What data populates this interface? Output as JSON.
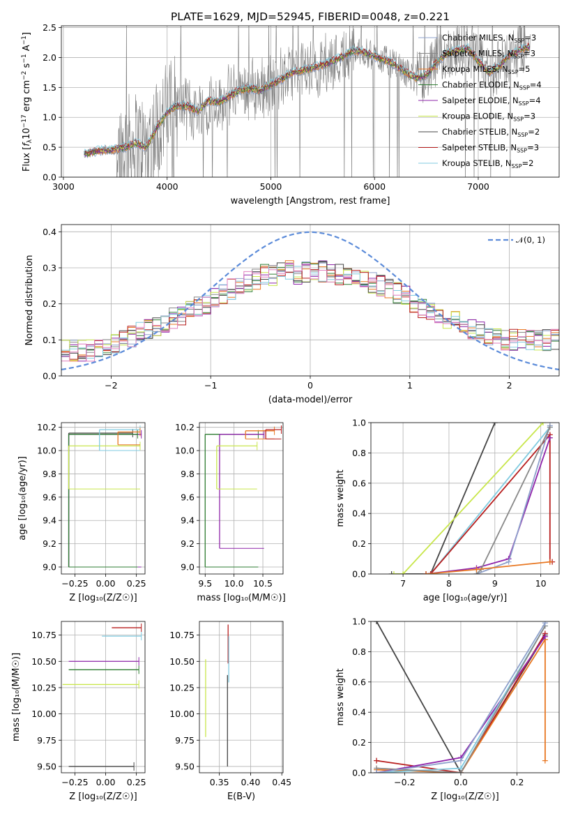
{
  "figure": {
    "title": "PLATE=1629, MJD=52945, FIBERID=0048, z=0.221"
  },
  "colors": {
    "Chabrier MILES": "#8da0cb",
    "Salpeter MILES": "#888888",
    "Kroupa MILES": "#e87722",
    "Chabrier ELODIE": "#2e7d32",
    "Salpeter ELODIE": "#8e24aa",
    "Kroupa ELODIE": "#c8e64a",
    "Chabrier STELIB": "#444444",
    "Salpeter STELIB": "#b71c1c",
    "Kroupa STELIB": "#80cbe0",
    "gauss": "#5b8bd9",
    "pink": "#e07fbf"
  },
  "chart_data": [
    {
      "type": "line",
      "panel": "spectrum",
      "xlabel": "wavelength [Angstrom, rest frame]",
      "ylabel": "Flux [f_λ 10^-17 erg cm^-2 s^-1 A^-1]",
      "ylabel_parts": {
        "a": "Flux [",
        "b": "f",
        "c": "λ",
        "d": "10",
        "e": "−17",
        "f": " erg cm",
        "g": "−2",
        "h": " s",
        "i": "−1",
        "j": " A",
        "k": "−1",
        "l": "]"
      },
      "xlim": [
        2980,
        7780
      ],
      "ylim": [
        0,
        2.53
      ],
      "xticks": [
        3000,
        4000,
        5000,
        6000,
        7000
      ],
      "yticks": [
        0.0,
        0.5,
        1.0,
        1.5,
        2.0,
        2.5
      ],
      "grid": true,
      "legend_position": "right",
      "legend": [
        {
          "label": "Chabrier MILES, N",
          "sub": "SSP",
          "tail": "=3"
        },
        {
          "label": "Salpeter MILES, N",
          "sub": "SSP",
          "tail": "=3"
        },
        {
          "label": "Kroupa MILES, N",
          "sub": "SSP",
          "tail": "=5"
        },
        {
          "label": "Chabrier ELODIE, N",
          "sub": "SSP",
          "tail": "=4"
        },
        {
          "label": "Salpeter ELODIE, N",
          "sub": "SSP",
          "tail": "=4"
        },
        {
          "label": "Kroupa ELODIE, N",
          "sub": "SSP",
          "tail": "=3"
        },
        {
          "label": "Chabrier STELIB, N",
          "sub": "SSP",
          "tail": "=2"
        },
        {
          "label": "Salpeter STELIB, N",
          "sub": "SSP",
          "tail": "=3"
        },
        {
          "label": "Kroupa STELIB, N",
          "sub": "SSP",
          "tail": "=2"
        }
      ],
      "model_continuum": {
        "x": [
          3200,
          3300,
          3400,
          3500,
          3600,
          3700,
          3800,
          3900,
          4000,
          4100,
          4200,
          4300,
          4400,
          4500,
          4600,
          4700,
          4800,
          4900,
          5000,
          5100,
          5200,
          5300,
          5400,
          5500,
          5600,
          5700,
          5800,
          5900,
          6000,
          6100,
          6200,
          6300,
          6400,
          6500,
          6600,
          6700,
          6800,
          6900,
          7000,
          7100,
          7200,
          7300,
          7400,
          7500
        ],
        "y": [
          0.38,
          0.43,
          0.45,
          0.46,
          0.5,
          0.57,
          0.5,
          0.82,
          1.08,
          1.2,
          1.18,
          1.1,
          1.28,
          1.25,
          1.35,
          1.46,
          1.48,
          1.45,
          1.55,
          1.63,
          1.75,
          1.78,
          1.83,
          1.87,
          1.94,
          2.02,
          2.12,
          2.08,
          2.02,
          1.96,
          1.87,
          1.75,
          1.66,
          1.7,
          1.92,
          2.08,
          2.12,
          2.15,
          1.94,
          1.75,
          1.85,
          2.03,
          2.12,
          2.18
        ]
      }
    },
    {
      "type": "step",
      "panel": "residual-distribution",
      "xlabel": "(data-model)/error",
      "ylabel": "Normed distribution",
      "xlim": [
        -2.5,
        2.5
      ],
      "ylim": [
        0,
        0.42
      ],
      "xticks": [
        -2,
        -1,
        0,
        1,
        2
      ],
      "yticks": [
        0.0,
        0.1,
        0.2,
        0.3,
        0.4
      ],
      "grid": true,
      "legend_label": "𝒩(0, 1)",
      "legend_position": "top-right",
      "reference": {
        "name": "N(0,1)",
        "mean": 0,
        "sigma": 1
      },
      "mean_hist": [
        0.07,
        0.07,
        0.07,
        0.07,
        0.08,
        0.08,
        0.09,
        0.1,
        0.11,
        0.12,
        0.13,
        0.14,
        0.15,
        0.16,
        0.17,
        0.18,
        0.19,
        0.2,
        0.22,
        0.23,
        0.24,
        0.25,
        0.26,
        0.27,
        0.28,
        0.28,
        0.29,
        0.29,
        0.28,
        0.29,
        0.29,
        0.29,
        0.29,
        0.28,
        0.28,
        0.27,
        0.27,
        0.26,
        0.25,
        0.24,
        0.23,
        0.22,
        0.2,
        0.19,
        0.18,
        0.17,
        0.16,
        0.15,
        0.14,
        0.13,
        0.12,
        0.11,
        0.11,
        0.1,
        0.1,
        0.1,
        0.1,
        0.1,
        0.1,
        0.1
      ]
    },
    {
      "type": "error-bars",
      "panel": "age-vs-Z",
      "xlabel": "Z [log10(Z/Z☉)]",
      "ylabel": "age [log10(age/yr)]",
      "xlim": [
        -0.36,
        0.32
      ],
      "ylim": [
        8.94,
        10.24
      ],
      "xticks": [
        -0.25,
        0.0,
        0.25
      ],
      "xticklabels": [
        "−0.25",
        "0.00",
        "0.25"
      ],
      "yticks": [
        9.0,
        9.2,
        9.4,
        9.6,
        9.8,
        10.0,
        10.2
      ],
      "grid": true,
      "points": [
        {
          "series": "Chabrier STELIB",
          "x": [
            -0.3,
            0.22
          ],
          "y": [
            9.0,
            10.15
          ]
        },
        {
          "series": "Salpeter ELODIE",
          "x": [
            -0.3,
            0.29
          ],
          "y": [
            9.0,
            10.14
          ]
        },
        {
          "series": "Chabrier ELODIE",
          "x": [
            -0.3,
            0.26
          ],
          "y": [
            9.0,
            10.14
          ]
        },
        {
          "series": "Kroupa ELODIE",
          "x": [
            -0.3,
            0.28
          ],
          "y": [
            9.67,
            10.04
          ]
        },
        {
          "series": "Kroupa STELIB",
          "x": [
            -0.05,
            0.28
          ],
          "y": [
            10.0,
            10.18
          ]
        },
        {
          "series": "Kroupa MILES",
          "x": [
            0.1,
            0.28
          ],
          "y": [
            10.05,
            10.16
          ]
        }
      ]
    },
    {
      "type": "error-bars",
      "panel": "age-vs-mass",
      "xlabel": "mass [log10(M/M☉)]",
      "xlim": [
        9.4,
        10.85
      ],
      "ylim": [
        8.94,
        10.24
      ],
      "xticks": [
        9.5,
        10.0,
        10.5
      ],
      "yticks": [
        9.0,
        9.2,
        9.4,
        9.6,
        9.8,
        10.0,
        10.2
      ],
      "grid": true,
      "points": [
        {
          "series": "Chabrier ELODIE",
          "x": [
            9.5,
            10.42
          ],
          "y": [
            9.0,
            10.14
          ]
        },
        {
          "series": "Salpeter ELODIE",
          "x": [
            9.75,
            10.52
          ],
          "y": [
            9.16,
            10.14
          ]
        },
        {
          "series": "Kroupa ELODIE",
          "x": [
            9.7,
            10.4
          ],
          "y": [
            9.67,
            10.04
          ]
        },
        {
          "series": "Kroupa MILES",
          "x": [
            10.2,
            10.7
          ],
          "y": [
            10.1,
            10.17
          ]
        },
        {
          "series": "Salpeter STELIB",
          "x": [
            10.55,
            10.82
          ],
          "y": [
            10.1,
            10.18
          ]
        }
      ]
    },
    {
      "type": "line",
      "panel": "mass-weight-vs-age",
      "xlabel": "age [log10(age/yr)]",
      "ylabel": "mass weight",
      "xlim": [
        6.3,
        10.4
      ],
      "ylim": [
        0,
        1.0
      ],
      "xticks": [
        7,
        8,
        9,
        10
      ],
      "yticks": [
        0.0,
        0.2,
        0.4,
        0.6,
        0.8,
        1.0
      ],
      "grid": true,
      "series": [
        {
          "name": "Chabrier STELIB",
          "x": [
            6.75,
            7.6,
            9.0
          ],
          "y": [
            0.0,
            0.0,
            1.0
          ]
        },
        {
          "name": "Kroupa ELODIE",
          "x": [
            6.8,
            7.0,
            10.05
          ],
          "y": [
            0.0,
            0.0,
            1.0
          ]
        },
        {
          "name": "Kroupa STELIB",
          "x": [
            7.5,
            7.6,
            10.2
          ],
          "y": [
            0.0,
            0.0,
            0.97
          ]
        },
        {
          "name": "Salpeter STELIB",
          "x": [
            7.5,
            7.6,
            10.2,
            10.2,
            10.25
          ],
          "y": [
            0.0,
            0.0,
            0.92,
            0.08,
            0.08
          ]
        },
        {
          "name": "Salpeter ELODIE",
          "x": [
            7.5,
            8.6,
            9.3,
            10.2
          ],
          "y": [
            0.0,
            0.04,
            0.1,
            0.9
          ]
        },
        {
          "name": "Chabrier MILES",
          "x": [
            8.6,
            9.3,
            10.2
          ],
          "y": [
            0.0,
            0.08,
            0.98
          ]
        },
        {
          "name": "Salpeter MILES",
          "x": [
            8.6,
            8.7,
            10.2
          ],
          "y": [
            0.0,
            0.03,
            0.97
          ]
        },
        {
          "name": "Kroupa MILES",
          "x": [
            7.5,
            8.6,
            10.2
          ],
          "y": [
            0.0,
            0.03,
            0.08
          ]
        }
      ]
    },
    {
      "type": "error-bars",
      "panel": "mass-vs-Z",
      "xlabel": "Z [log10(Z/Z☉)]",
      "ylabel": "mass [log10(M/M☉)]",
      "xlim": [
        -0.36,
        0.32
      ],
      "ylim": [
        9.44,
        10.88
      ],
      "xticks": [
        -0.25,
        0.0,
        0.25
      ],
      "xticklabels": [
        "−0.25",
        "0.00",
        "0.25"
      ],
      "yticks": [
        9.5,
        9.75,
        10.0,
        10.25,
        10.5,
        10.75
      ],
      "yticklabels": [
        "9.50",
        "9.75",
        "10.00",
        "10.25",
        "10.50",
        "10.75"
      ],
      "grid": true,
      "points": [
        {
          "series": "Salpeter STELIB",
          "x": [
            0.05,
            0.29
          ],
          "y": [
            10.82,
            10.82
          ]
        },
        {
          "series": "Kroupa STELIB",
          "x": [
            -0.03,
            0.29
          ],
          "y": [
            10.74,
            10.74
          ]
        },
        {
          "series": "Salpeter ELODIE",
          "x": [
            -0.3,
            0.27
          ],
          "y": [
            10.5,
            10.5
          ]
        },
        {
          "series": "Chabrier ELODIE",
          "x": [
            -0.3,
            0.27
          ],
          "y": [
            10.42,
            10.42
          ]
        },
        {
          "series": "Kroupa ELODIE",
          "x": [
            -0.35,
            0.27
          ],
          "y": [
            10.28,
            10.28
          ]
        },
        {
          "series": "Chabrier STELIB",
          "x": [
            -0.3,
            0.23
          ],
          "y": [
            9.5,
            9.5
          ]
        }
      ]
    },
    {
      "type": "error-bars",
      "panel": "mass-vs-EBV",
      "xlabel": "E(B-V)",
      "xlim": [
        0.318,
        0.452
      ],
      "ylim": [
        9.44,
        10.88
      ],
      "xticks": [
        0.35,
        0.4,
        0.45
      ],
      "xticklabels": [
        "0.35",
        "0.40",
        "0.45"
      ],
      "yticks": [
        9.5,
        9.75,
        10.0,
        10.25,
        10.5,
        10.75
      ],
      "yticklabels": [
        "9.50",
        "9.75",
        "10.00",
        "10.25",
        "10.50",
        "10.75"
      ],
      "grid": true,
      "points": [
        {
          "series": "Kroupa ELODIE",
          "x": [
            0.328,
            0.328
          ],
          "y": [
            9.78,
            10.52
          ]
        },
        {
          "series": "Chabrier STELIB",
          "x": [
            0.363,
            0.363
          ],
          "y": [
            9.5,
            10.37
          ]
        },
        {
          "series": "Salpeter STELIB",
          "x": [
            0.364,
            0.364
          ],
          "y": [
            10.48,
            10.85
          ]
        },
        {
          "series": "Kroupa STELIB",
          "x": [
            0.365,
            0.365
          ],
          "y": [
            10.3,
            10.74
          ]
        }
      ]
    },
    {
      "type": "line",
      "panel": "mass-weight-vs-Z",
      "xlabel": "Z [log10(Z/Z☉)]",
      "ylabel": "mass weight",
      "xlim": [
        -0.32,
        0.35
      ],
      "ylim": [
        0,
        1.0
      ],
      "xticks": [
        -0.2,
        0.0,
        0.2
      ],
      "xticklabels": [
        "−0.2",
        "0.0",
        "0.2"
      ],
      "yticks": [
        0.0,
        0.2,
        0.4,
        0.6,
        0.8,
        1.0
      ],
      "grid": true,
      "series": [
        {
          "name": "Chabrier STELIB",
          "x": [
            -0.3,
            0.0,
            0.3
          ],
          "y": [
            1.0,
            0.0,
            0.91
          ]
        },
        {
          "name": "Salpeter STELIB",
          "x": [
            -0.3,
            0.0,
            0.3
          ],
          "y": [
            0.08,
            0.0,
            0.92
          ]
        },
        {
          "name": "Kroupa MILES",
          "x": [
            -0.3,
            0.0,
            0.3,
            0.3
          ],
          "y": [
            0.02,
            0.0,
            0.88,
            0.08
          ]
        },
        {
          "name": "Salpeter ELODIE",
          "x": [
            -0.3,
            0.0,
            0.3
          ],
          "y": [
            0.0,
            0.1,
            0.9
          ]
        },
        {
          "name": "Kroupa STELIB",
          "x": [
            -0.3,
            0.0,
            0.3
          ],
          "y": [
            0.0,
            0.03,
            0.97
          ]
        },
        {
          "name": "Salpeter MILES",
          "x": [
            -0.3,
            0.0,
            0.3
          ],
          "y": [
            0.03,
            0.0,
            0.97
          ]
        },
        {
          "name": "Chabrier MILES",
          "x": [
            -0.3,
            0.0,
            0.3
          ],
          "y": [
            0.0,
            0.08,
            0.99
          ]
        }
      ]
    }
  ]
}
